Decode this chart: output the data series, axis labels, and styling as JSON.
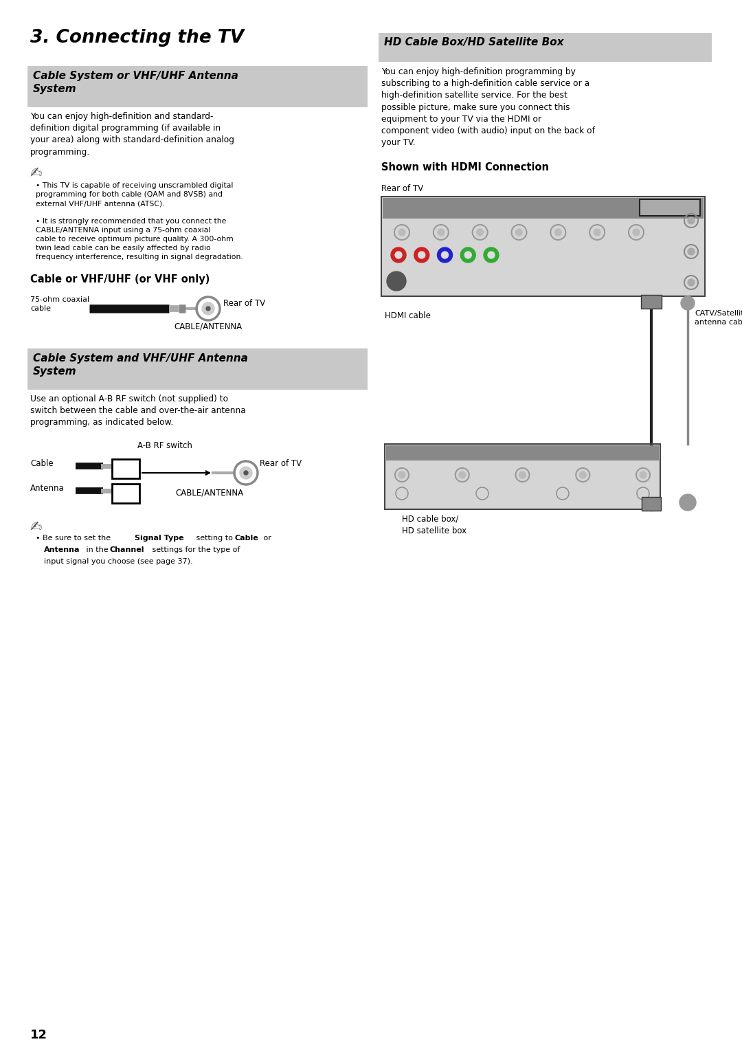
{
  "page_bg": "#ffffff",
  "header_bg": "#c8c8c8",
  "page_number": "12",
  "main_title": "3. Connecting the TV",
  "left": {
    "section1_title": "Cable System or VHF/UHF Antenna\nSystem",
    "section1_body": "You can enjoy high-definition and standard-\ndefinition digital programming (if available in\nyour area) along with standard-definition analog\nprogramming.",
    "note1": "This TV is capable of receiving unscrambled digital\nprogramming for both cable (QAM and 8VSB) and\nexternal VHF/UHF antenna (ATSC).",
    "note2": "It is strongly recommended that you connect the\nCABLE/ANTENNA input using a 75-ohm coaxial\ncable to receive optimum picture quality. A 300-ohm\ntwin lead cable can be easily affected by radio\nfrequency interference, resulting in signal degradation.",
    "subsection1_title": "Cable or VHF/UHF (or VHF only)",
    "cable_label1": "75-ohm coaxial\ncable",
    "cable_label2": "Rear of TV",
    "cable_label3": "CABLE/ANTENNA",
    "section2_title": "Cable System and VHF/UHF Antenna\nSystem",
    "section2_body": "Use an optional A-B RF switch (not supplied) to\nswitch between the cable and over-the-air antenna\nprogramming, as indicated below.",
    "ab_switch": "A-B RF switch",
    "cable_lbl": "Cable",
    "antenna_lbl": "Antenna",
    "rear_tv": "Rear of TV",
    "cable_ant": "CABLE/ANTENNA"
  },
  "right": {
    "section_title": "HD Cable Box/HD Satellite Box",
    "body": "You can enjoy high-definition programming by\nsubscribing to a high-definition cable service or a\nhigh-definition satellite service. For the best\npossible picture, make sure you connect this\nequipment to your TV via the HDMI or\ncomponent video (with audio) input on the back of\nyour TV.",
    "hdmi_header": "Shown with HDMI Connection",
    "rear_tv_lbl": "Rear of TV",
    "hdmi_cable_lbl": "HDMI cable",
    "catv_lbl": "CATV/Satellite\nantenna cable",
    "hd_box_lbl": "HD cable box/\nHD satellite box"
  }
}
